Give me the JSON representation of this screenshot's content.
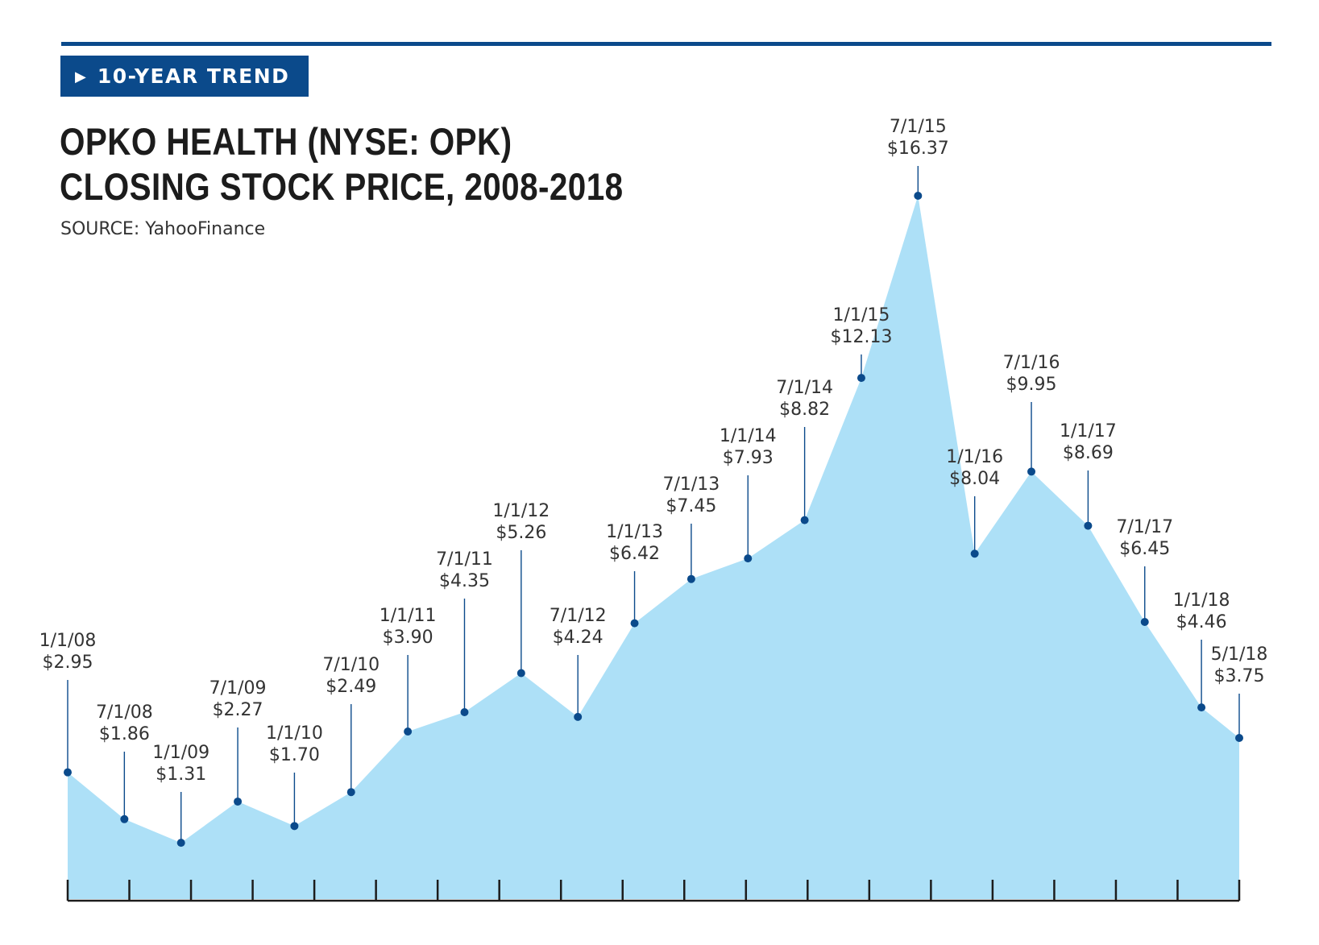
{
  "header": {
    "badge_label": "10-YEAR TREND",
    "badge_icon": "triangle-right-icon",
    "title_line1": "OPKO HEALTH (NYSE: OPK)",
    "title_line2": "CLOSING STOCK PRICE, 2008-2018",
    "source": "SOURCE: YahooFinance"
  },
  "colors": {
    "accent": "#0b4a8b",
    "area_fill": "#ade0f7",
    "point": "#0b4a8b",
    "text": "#333333"
  },
  "chart_data": {
    "type": "area",
    "title": "OPKO HEALTH (NYSE: OPK) CLOSING STOCK PRICE, 2008-2018",
    "xlabel": "",
    "ylabel": "",
    "grid": false,
    "legend": "none",
    "ylim": [
      0,
      18
    ],
    "series": [
      {
        "points": [
          {
            "date": "1/1/08",
            "price": 2.95,
            "label": "$2.95"
          },
          {
            "date": "7/1/08",
            "price": 1.86,
            "label": "$1.86"
          },
          {
            "date": "1/1/09",
            "price": 1.31,
            "label": "$1.31"
          },
          {
            "date": "7/1/09",
            "price": 2.27,
            "label": "$2.27"
          },
          {
            "date": "1/1/10",
            "price": 1.7,
            "label": "$1.70"
          },
          {
            "date": "7/1/10",
            "price": 2.49,
            "label": "$2.49"
          },
          {
            "date": "1/1/11",
            "price": 3.9,
            "label": "$3.90"
          },
          {
            "date": "7/1/11",
            "price": 4.35,
            "label": "$4.35"
          },
          {
            "date": "1/1/12",
            "price": 5.26,
            "label": "$5.26"
          },
          {
            "date": "7/1/12",
            "price": 4.24,
            "label": "$4.24"
          },
          {
            "date": "1/1/13",
            "price": 6.42,
            "label": "$6.42"
          },
          {
            "date": "7/1/13",
            "price": 7.45,
            "label": "$7.45"
          },
          {
            "date": "1/1/14",
            "price": 7.93,
            "label": "$7.93"
          },
          {
            "date": "7/1/14",
            "price": 8.82,
            "label": "$8.82"
          },
          {
            "date": "1/1/15",
            "price": 12.13,
            "label": "$12.13"
          },
          {
            "date": "7/1/15",
            "price": 16.37,
            "label": "$16.37"
          },
          {
            "date": "1/1/16",
            "price": 8.04,
            "label": "$8.04"
          },
          {
            "date": "7/1/16",
            "price": 9.95,
            "label": "$9.95"
          },
          {
            "date": "1/1/17",
            "price": 8.69,
            "label": "$8.69"
          },
          {
            "date": "7/1/17",
            "price": 6.45,
            "label": "$6.45"
          },
          {
            "date": "1/1/18",
            "price": 4.46,
            "label": "$4.46"
          },
          {
            "date": "5/1/18",
            "price": 3.75,
            "label": "$3.75"
          }
        ]
      }
    ]
  }
}
